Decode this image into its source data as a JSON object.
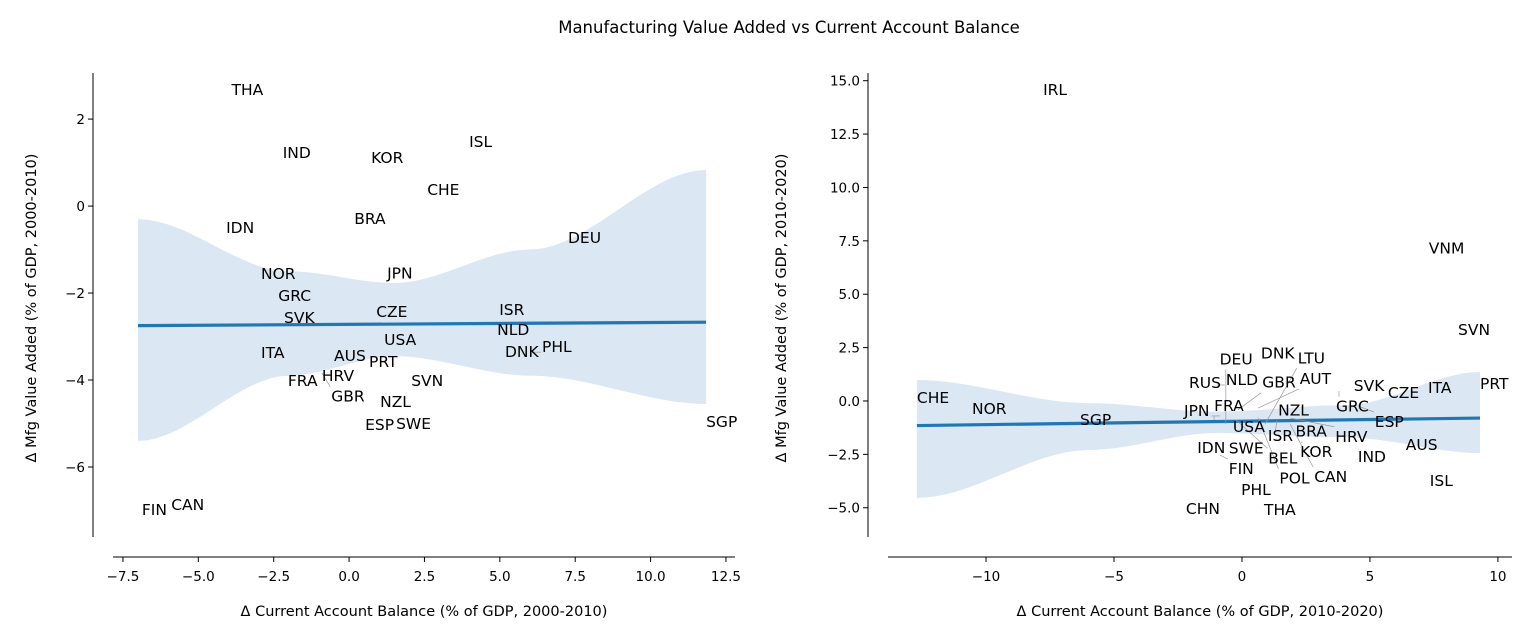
{
  "title": "Manufacturing Value Added vs Current Account Balance",
  "colors": {
    "line": "#1f77b4",
    "band": "#dbe7f3",
    "text": "#000000"
  },
  "chart_data": [
    {
      "type": "scatter",
      "xlabel": "Δ Current Account Balance (% of GDP, 2000-2010)",
      "ylabel": "Δ Mfg Value Added (% of GDP, 2000-2010)",
      "xlim": [
        -7.83,
        12.8
      ],
      "ylim": [
        -7.61,
        3.06
      ],
      "xticks": [
        -7.5,
        -5.0,
        -2.5,
        0.0,
        2.5,
        5.0,
        7.5,
        10.0,
        12.5
      ],
      "xtick_labels": [
        "−7.5",
        "−5.0",
        "−2.5",
        "0.0",
        "2.5",
        "5.0",
        "7.5",
        "10.0",
        "12.5"
      ],
      "yticks": [
        2,
        0,
        -2,
        -4,
        -6
      ],
      "ytick_labels": [
        "2",
        "0",
        "−2",
        "−4",
        "−6"
      ],
      "regression": {
        "x": [
          -7.0,
          11.84
        ],
        "y": [
          -2.75,
          -2.67
        ]
      },
      "ci_band": {
        "x": [
          -7.0,
          -2.0,
          1.5,
          6.0,
          11.84
        ],
        "upper": [
          -0.3,
          -1.5,
          -1.77,
          -1.0,
          0.83
        ],
        "lower": [
          -5.4,
          -3.9,
          -3.45,
          -3.9,
          -4.55
        ]
      },
      "points": [
        {
          "label": "THA",
          "x": -3.9,
          "y": 2.55
        },
        {
          "label": "IND",
          "x": -2.2,
          "y": 1.1
        },
        {
          "label": "KOR",
          "x": 0.73,
          "y": 0.99
        },
        {
          "label": "ISL",
          "x": 3.98,
          "y": 1.36
        },
        {
          "label": "CHE",
          "x": 2.59,
          "y": 0.25
        },
        {
          "label": "BRA",
          "x": 0.17,
          "y": -0.41
        },
        {
          "label": "IDN",
          "x": -4.08,
          "y": -0.62
        },
        {
          "label": "DEU",
          "x": 7.26,
          "y": -0.85
        },
        {
          "label": "NOR",
          "x": -2.92,
          "y": -1.68
        },
        {
          "label": "GRC",
          "x": -2.35,
          "y": -1.91
        },
        {
          "label": "JPN",
          "x": 1.26,
          "y": -1.66
        },
        {
          "label": "SVK",
          "x": -2.16,
          "y": -2.48
        },
        {
          "label": "CZE",
          "x": 0.9,
          "y": -2.55
        },
        {
          "label": "ISR",
          "x": 4.98,
          "y": -2.5
        },
        {
          "label": "NLD",
          "x": 4.91,
          "y": -2.9
        },
        {
          "label": "DNK",
          "x": 5.17,
          "y": -3.26
        },
        {
          "label": "PHL",
          "x": 6.1,
          "y": -3.36
        },
        {
          "label": "USA",
          "x": 1.16,
          "y": -3.2
        },
        {
          "label": "PRT",
          "x": 0.66,
          "y": -3.43
        },
        {
          "label": "AUS",
          "x": -0.2,
          "y": -3.56
        },
        {
          "label": "HRV",
          "x": -0.9,
          "y": -3.68
        },
        {
          "label": "GBR",
          "x": -0.9,
          "y": -3.84
        },
        {
          "label": "ITA",
          "x": -2.92,
          "y": -3.49
        },
        {
          "label": "FRA",
          "x": -1.96,
          "y": -4.09
        },
        {
          "label": "SVN",
          "x": 2.06,
          "y": -4.14
        },
        {
          "label": "NZL",
          "x": 1.03,
          "y": -4.62
        },
        {
          "label": "SWE",
          "x": 1.56,
          "y": -4.92
        },
        {
          "label": "ESP",
          "x": 0.73,
          "y": -5.15
        },
        {
          "label": "SGP",
          "x": 11.84,
          "y": -5.08
        },
        {
          "label": "FIN",
          "x": -6.87,
          "y": -7.1
        },
        {
          "label": "CAN",
          "x": -6.0,
          "y": -6.99
        }
      ]
    },
    {
      "type": "scatter",
      "xlabel": "Δ Current Account Balance (% of GDP, 2010-2020)",
      "ylabel": "Δ Mfg Value Added (% of GDP, 2010-2020)",
      "xlim": [
        -13.83,
        10.55
      ],
      "ylim": [
        -6.37,
        15.36
      ],
      "xticks": [
        -10,
        -5,
        0,
        5,
        10
      ],
      "xtick_labels": [
        "−10",
        "−5",
        "0",
        "5",
        "10"
      ],
      "yticks": [
        15,
        12.5,
        10,
        7.5,
        5,
        2.5,
        0,
        -2.5,
        -5
      ],
      "ytick_labels": [
        "15.0",
        "12.5",
        "10.0",
        "7.5",
        "5.0",
        "2.5",
        "0.0",
        "−2.5",
        "−5.0"
      ],
      "regression": {
        "x": [
          -12.7,
          9.3
        ],
        "y": [
          -1.15,
          -0.8
        ]
      },
      "ci_band": {
        "x": [
          -12.7,
          -6.0,
          -1.0,
          4.0,
          9.3
        ],
        "upper": [
          0.98,
          -0.1,
          -0.5,
          -0.2,
          1.36
        ],
        "lower": [
          -4.54,
          -2.3,
          -1.5,
          -1.7,
          -2.44
        ]
      },
      "points": [
        {
          "label": "IRL",
          "x": -7.77,
          "y": 14.33
        },
        {
          "label": "VNM",
          "x": 7.3,
          "y": 6.9
        },
        {
          "label": "SVN",
          "x": 8.44,
          "y": 3.1
        },
        {
          "label": "DNK",
          "x": 0.74,
          "y": 2.0
        },
        {
          "label": "PRT",
          "x": 9.3,
          "y": 0.56
        },
        {
          "label": "ITA",
          "x": 7.27,
          "y": 0.37
        },
        {
          "label": "CZE",
          "x": 5.7,
          "y": 0.14
        },
        {
          "label": "SVK",
          "x": 4.37,
          "y": 0.47
        },
        {
          "label": "GRC",
          "x": 3.79,
          "y": 0.47
        },
        {
          "label": "ESP",
          "x": 4.53,
          "y": -0.23
        },
        {
          "label": "RUS",
          "x": -2.07,
          "y": 0.61
        },
        {
          "label": "NLD",
          "x": -0.98,
          "y": 0.75
        },
        {
          "label": "CHE",
          "x": -12.7,
          "y": -0.09
        },
        {
          "label": "NOR",
          "x": -10.55,
          "y": -0.61
        },
        {
          "label": "SGP",
          "x": -6.33,
          "y": -1.12
        },
        {
          "label": "AUS",
          "x": 6.4,
          "y": -2.3
        },
        {
          "label": "IND",
          "x": 4.53,
          "y": -2.86
        },
        {
          "label": "ISL",
          "x": 7.34,
          "y": -3.98
        },
        {
          "label": "KOR",
          "x": 2.27,
          "y": -2.62
        },
        {
          "label": "BRA",
          "x": 2.34,
          "y": -1.97
        },
        {
          "label": "ISR",
          "x": 1.48,
          "y": -1.87
        },
        {
          "label": "NZL",
          "x": 1.29,
          "y": -1.5
        },
        {
          "label": "USA",
          "x": 0.23,
          "y": -1.45
        },
        {
          "label": "SWE",
          "x": -0.27,
          "y": -2.15
        },
        {
          "label": "IDN",
          "x": -1.09,
          "y": -2.15
        },
        {
          "label": "FIN",
          "x": -0.86,
          "y": -2.53
        },
        {
          "label": "PHL",
          "x": -0.2,
          "y": -4.2
        },
        {
          "label": "CHN",
          "x": -2.19,
          "y": -5.3
        },
        {
          "label": "THA",
          "x": 0.86,
          "y": -5.34
        },
        {
          "label": "FRA",
          "x": -1.09,
          "y": -0.89
        },
        {
          "label": "JPN",
          "x": -0.86,
          "y": -0.7
        },
        {
          "label": "GBR",
          "x": -0.16,
          "y": -0.42
        },
        {
          "label": "AUT",
          "x": 0.63,
          "y": -0.33
        },
        {
          "label": "DEU",
          "x": -0.63,
          "y": -1.08
        },
        {
          "label": "BEL",
          "x": -0.23,
          "y": -0.89
        },
        {
          "label": "POL",
          "x": 0.63,
          "y": -0.8
        },
        {
          "label": "HRV",
          "x": 1.88,
          "y": -0.8
        },
        {
          "label": "CAN",
          "x": 1.88,
          "y": -1.08
        },
        {
          "label": "LTU",
          "x": 0.9,
          "y": -1.08
        }
      ]
    }
  ]
}
